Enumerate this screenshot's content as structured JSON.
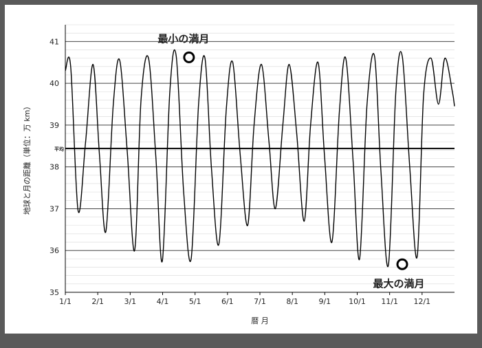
{
  "chart_data": {
    "type": "line",
    "xlabel": "暦 月",
    "ylabel": "地球と月の距離（単位：万 km）",
    "ylim": [
      35,
      41.4
    ],
    "y_ticks": [
      35,
      36,
      37,
      38,
      39,
      40,
      41
    ],
    "x_tick_labels": [
      "1/1",
      "2/1",
      "3/1",
      "4/1",
      "5/1",
      "6/1",
      "7/1",
      "8/1",
      "9/1",
      "10/1",
      "11/1",
      "12/1"
    ],
    "x_range_days": [
      0,
      365
    ],
    "grid": true,
    "average_line": {
      "label": "平均",
      "value": 38.44
    },
    "series": [
      {
        "x_days": [
          0,
          5,
          12,
          19,
          26,
          32,
          38,
          45,
          51,
          58,
          65,
          71,
          78,
          85,
          91,
          98,
          104,
          111,
          118,
          125,
          131,
          137,
          144,
          151,
          157,
          164,
          171,
          177,
          184,
          191,
          197,
          204,
          210,
          217,
          224,
          230,
          237,
          243,
          250,
          257,
          263,
          270,
          276,
          283,
          290,
          296,
          303,
          310,
          316,
          323,
          330,
          336,
          343,
          350,
          356,
          363,
          365
        ],
        "y": [
          40.3,
          40.4,
          36.95,
          38.6,
          40.45,
          38.3,
          36.45,
          39.5,
          40.55,
          38.4,
          36.0,
          39.6,
          40.6,
          38.2,
          35.75,
          39.8,
          40.65,
          37.4,
          35.8,
          39.5,
          40.6,
          38.0,
          36.15,
          39.4,
          40.5,
          38.3,
          36.6,
          39.0,
          40.45,
          38.6,
          37.0,
          39.0,
          40.45,
          38.8,
          36.7,
          39.0,
          40.5,
          38.3,
          36.2,
          39.3,
          40.6,
          38.1,
          35.8,
          39.5,
          40.65,
          37.9,
          35.65,
          39.8,
          40.65,
          38.0,
          35.85,
          39.7,
          40.6,
          39.5,
          40.6,
          39.8,
          39.45
        ]
      }
    ],
    "annotations": [
      {
        "text": "最小の満月",
        "x_day": 116,
        "y": 40.62
      },
      {
        "text": "最大の満月",
        "x_day": 316,
        "y": 35.67
      }
    ]
  }
}
